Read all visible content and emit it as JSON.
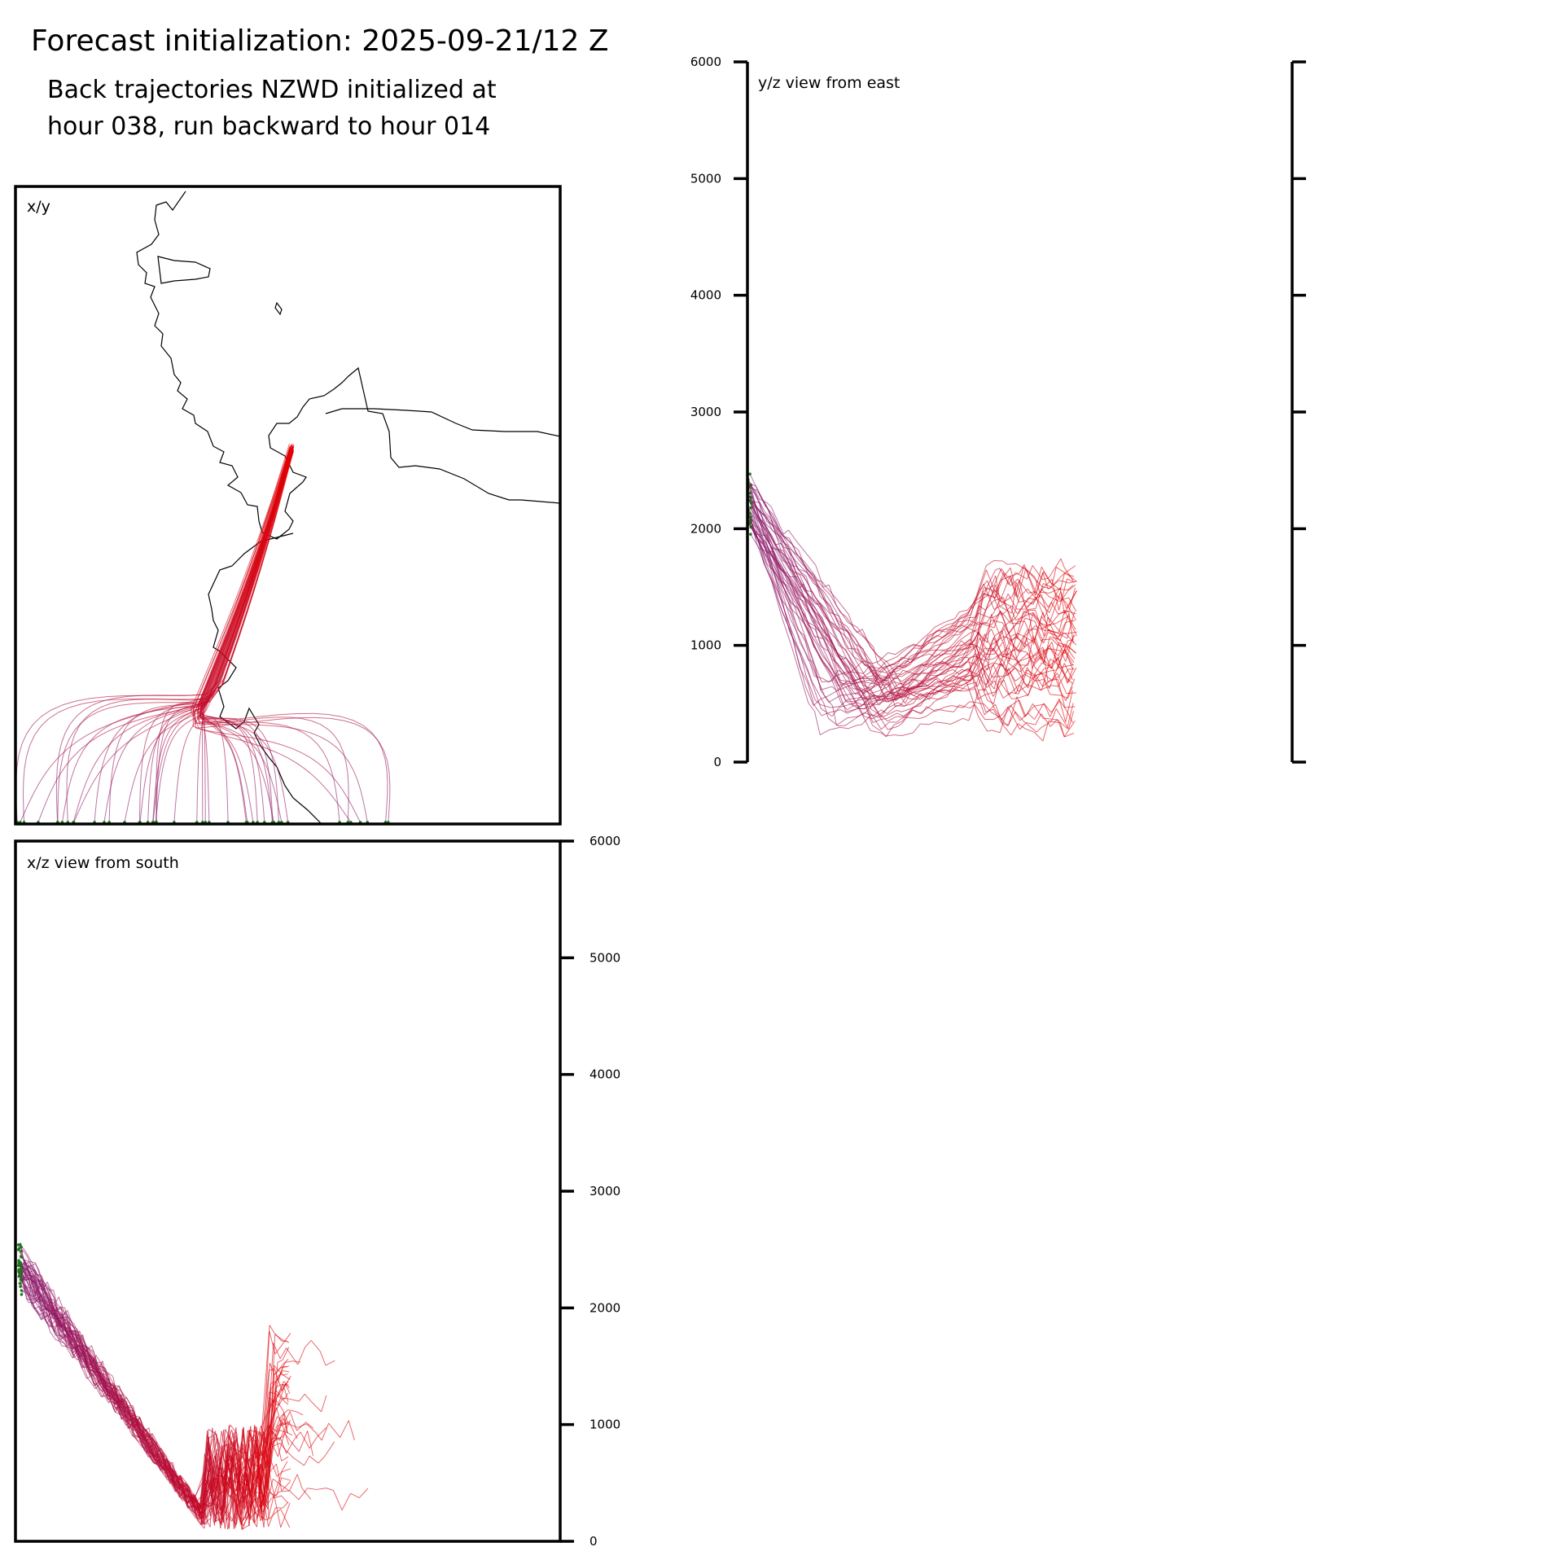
{
  "figure": {
    "title": "Forecast initialization: 2025-09-21/12 Z",
    "subtitle_line1": "Back trajectories NZWD initialized at",
    "subtitle_line2": "hour 038, run backward to hour 014"
  },
  "colors": {
    "start": "#e60000",
    "end": "#8b1a6b",
    "endpoint": "#1a7a1a",
    "coast": "#000000"
  },
  "chart_data": [
    {
      "type": "line",
      "panel": "x/y",
      "label": "x/y",
      "description_keys": [
        "coastline",
        "trajectories"
      ],
      "series_summary": "back trajectories from NZWD fanning to the south-west and south"
    },
    {
      "type": "line",
      "panel": "y/z",
      "label": "y/z view from east",
      "ylim": [
        0,
        6000
      ],
      "yticks": [
        "0",
        "1000",
        "2000",
        "3000",
        "4000",
        "5000",
        "6000"
      ]
    },
    {
      "type": "line",
      "panel": "x/z",
      "label": "x/z view from south",
      "ylim": [
        0,
        6000
      ],
      "yticks": [
        "0",
        "1000",
        "2000",
        "3000",
        "4000",
        "5000",
        "6000"
      ]
    }
  ]
}
